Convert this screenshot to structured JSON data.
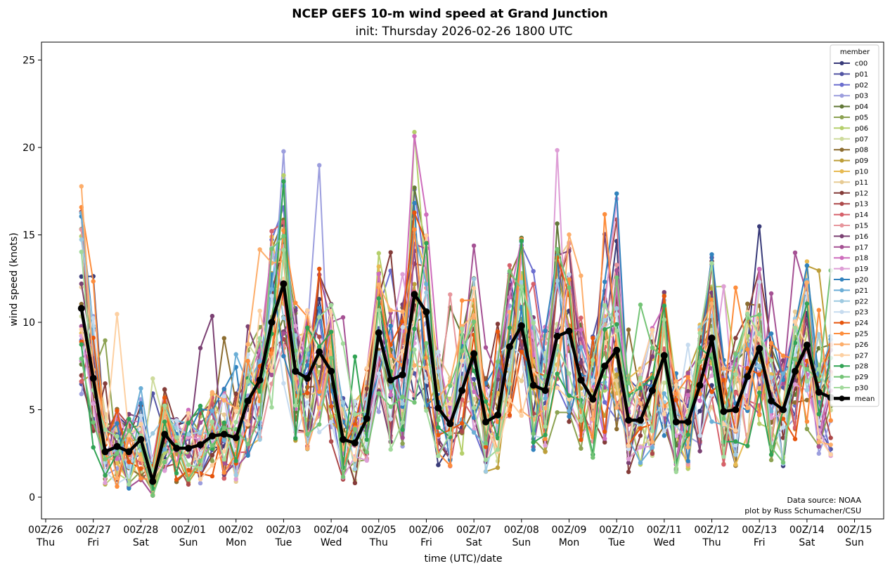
{
  "chart_data": {
    "type": "line",
    "title": "NCEP GEFS 10-m wind speed at Grand Junction",
    "subtitle": "init: Thursday 2026-02-26 1800 UTC",
    "xlabel": "time (UTC)/date",
    "ylabel": "wind speed (knots)",
    "ylim": [
      -1.2,
      26.1
    ],
    "y_ticks": [
      0,
      5,
      10,
      15,
      20,
      25
    ],
    "x_unit": "hours after 2026-02-26 00Z",
    "xlim": [
      0,
      432
    ],
    "x_ticks": [
      {
        "hour": 0,
        "label": "00Z/26",
        "day": "Thu"
      },
      {
        "hour": 24,
        "label": "00Z/27",
        "day": "Fri"
      },
      {
        "hour": 48,
        "label": "00Z/28",
        "day": "Sat"
      },
      {
        "hour": 72,
        "label": "00Z/01",
        "day": "Sun"
      },
      {
        "hour": 96,
        "label": "00Z/02",
        "day": "Mon"
      },
      {
        "hour": 120,
        "label": "00Z/03",
        "day": "Tue"
      },
      {
        "hour": 144,
        "label": "00Z/04",
        "day": "Wed"
      },
      {
        "hour": 168,
        "label": "00Z/05",
        "day": "Thu"
      },
      {
        "hour": 192,
        "label": "00Z/06",
        "day": "Fri"
      },
      {
        "hour": 216,
        "label": "00Z/07",
        "day": "Sat"
      },
      {
        "hour": 240,
        "label": "00Z/08",
        "day": "Sun"
      },
      {
        "hour": 264,
        "label": "00Z/09",
        "day": "Mon"
      },
      {
        "hour": 288,
        "label": "00Z/10",
        "day": "Tue"
      },
      {
        "hour": 312,
        "label": "00Z/11",
        "day": "Wed"
      },
      {
        "hour": 336,
        "label": "00Z/12",
        "day": "Thu"
      },
      {
        "hour": 360,
        "label": "00Z/13",
        "day": "Fri"
      },
      {
        "hour": 384,
        "label": "00Z/14",
        "day": "Sat"
      },
      {
        "hour": 408,
        "label": "00Z/15",
        "day": "Sun"
      }
    ],
    "legend_title": "member",
    "legend_position": "right",
    "grid": false,
    "members": [
      {
        "name": "c00",
        "color": "#393b79"
      },
      {
        "name": "p01",
        "color": "#5254a3"
      },
      {
        "name": "p02",
        "color": "#6b6ecf"
      },
      {
        "name": "p03",
        "color": "#9c9ede"
      },
      {
        "name": "p04",
        "color": "#637939"
      },
      {
        "name": "p05",
        "color": "#8ca252"
      },
      {
        "name": "p06",
        "color": "#b5cf6b"
      },
      {
        "name": "p07",
        "color": "#cedb9c"
      },
      {
        "name": "p08",
        "color": "#8c6d31"
      },
      {
        "name": "p09",
        "color": "#bd9e39"
      },
      {
        "name": "p10",
        "color": "#e7ba52"
      },
      {
        "name": "p11",
        "color": "#e7cb94"
      },
      {
        "name": "p12",
        "color": "#843c39"
      },
      {
        "name": "p13",
        "color": "#ad494a"
      },
      {
        "name": "p14",
        "color": "#d6616b"
      },
      {
        "name": "p15",
        "color": "#e7969c"
      },
      {
        "name": "p16",
        "color": "#7b4173"
      },
      {
        "name": "p17",
        "color": "#a55194"
      },
      {
        "name": "p18",
        "color": "#ce6dbd"
      },
      {
        "name": "p19",
        "color": "#de9ed6"
      },
      {
        "name": "p20",
        "color": "#3182bd"
      },
      {
        "name": "p21",
        "color": "#6baed6"
      },
      {
        "name": "p22",
        "color": "#9ecae1"
      },
      {
        "name": "p23",
        "color": "#c6dbef"
      },
      {
        "name": "p24",
        "color": "#e6550d"
      },
      {
        "name": "p25",
        "color": "#fd8d3c"
      },
      {
        "name": "p26",
        "color": "#fdae6b"
      },
      {
        "name": "p27",
        "color": "#fdd0a2"
      },
      {
        "name": "p28",
        "color": "#31a354"
      },
      {
        "name": "p29",
        "color": "#74c476"
      },
      {
        "name": "p30",
        "color": "#a1d99b"
      }
    ],
    "mean": {
      "name": "mean",
      "color": "#000000",
      "start_hour": 18,
      "step_hours": 6,
      "values": [
        10.8,
        6.8,
        2.6,
        2.9,
        2.6,
        3.3,
        0.9,
        3.6,
        2.8,
        2.8,
        3.0,
        3.5,
        3.6,
        3.4,
        5.5,
        6.7,
        10.0,
        12.2,
        7.2,
        6.8,
        8.3,
        7.2,
        3.3,
        3.1,
        4.5,
        9.4,
        6.7,
        7.0,
        11.6,
        10.6,
        5.1,
        4.2,
        6.1,
        8.2,
        4.3,
        4.7,
        8.6,
        9.8,
        6.4,
        6.1,
        9.2,
        9.5,
        6.7,
        5.6,
        7.5,
        8.4,
        4.4,
        4.4,
        6.1,
        8.1,
        4.3,
        4.3,
        6.4,
        9.1,
        4.9,
        5.0,
        6.9,
        8.5,
        5.5,
        5.0,
        7.2,
        8.7,
        6.0,
        5.7
      ]
    },
    "members_start_hour": 18,
    "members_step_hours": 6,
    "member_values_note": "",
    "annotations": [
      "Data source: NOAA",
      "plot by Russ Schumacher/CSU"
    ]
  }
}
